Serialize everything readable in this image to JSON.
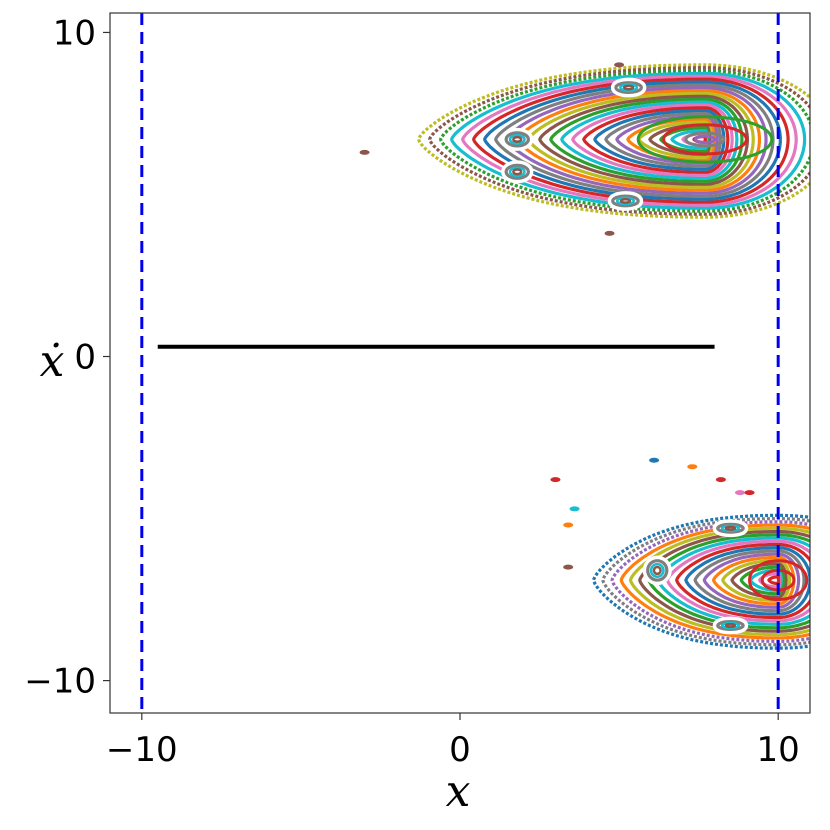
{
  "chart_data": {
    "type": "scatter",
    "title": "",
    "xlabel": "x",
    "ylabel": "ẋ",
    "xlim": [
      -11,
      11
    ],
    "ylim": [
      -11,
      10.6
    ],
    "xticks": [
      {
        "value": -10,
        "label": "−10"
      },
      {
        "value": 0,
        "label": "0"
      },
      {
        "value": 10,
        "label": "10"
      }
    ],
    "yticks": [
      {
        "value": 10,
        "label": "10"
      },
      {
        "value": 0,
        "label": "0"
      },
      {
        "value": -10,
        "label": "−10"
      }
    ],
    "grid": false,
    "walls": {
      "x": [
        -10,
        10
      ],
      "color": "#0000ee",
      "style": "dashed"
    },
    "reference_line": {
      "y": 0.3,
      "x_start": -9.5,
      "x_end": 8,
      "color": "#000000"
    },
    "palette": [
      "#1f77b4",
      "#ff7f0e",
      "#2ca02c",
      "#d62728",
      "#9467bd",
      "#8c564b",
      "#e377c2",
      "#7f7f7f",
      "#bcbd22",
      "#17becf"
    ],
    "upper_island": {
      "center": [
        7.7,
        6.7
      ],
      "tip_x": -1.3,
      "top_y": 9.0,
      "bottom_y": 4.3,
      "levels": 26
    },
    "lower_island": {
      "center": [
        10.0,
        -6.9
      ],
      "tip_x": 4.2,
      "top_y": -4.9,
      "bottom_y": -9.0,
      "levels": 20
    },
    "secondary_islands": [
      {
        "x": 1.8,
        "y": 6.7,
        "r": [
          0.35,
          0.2
        ]
      },
      {
        "x": 1.8,
        "y": 5.7,
        "r": [
          0.35,
          0.2
        ]
      },
      {
        "x": 5.3,
        "y": 8.3,
        "r": [
          0.4,
          0.15
        ]
      },
      {
        "x": 5.2,
        "y": 4.8,
        "r": [
          0.4,
          0.15
        ]
      },
      {
        "x": 6.2,
        "y": -6.6,
        "r": [
          0.3,
          0.3
        ]
      },
      {
        "x": 8.5,
        "y": -5.3,
        "r": [
          0.4,
          0.12
        ]
      },
      {
        "x": 8.5,
        "y": -8.3,
        "r": [
          0.4,
          0.12
        ]
      }
    ],
    "satellite_points": [
      {
        "x": -3.0,
        "y": 6.3,
        "color": "#8c564b"
      },
      {
        "x": 5.0,
        "y": 9.0,
        "color": "#8c564b"
      },
      {
        "x": 4.7,
        "y": 3.8,
        "color": "#8c564b"
      },
      {
        "x": 3.4,
        "y": -6.5,
        "color": "#8c564b"
      },
      {
        "x": 3.0,
        "y": -3.8,
        "color": "#d62728"
      },
      {
        "x": 3.6,
        "y": -4.7,
        "color": "#17becf"
      },
      {
        "x": 6.1,
        "y": -3.2,
        "color": "#1f77b4"
      },
      {
        "x": 7.3,
        "y": -3.4,
        "color": "#ff7f0e"
      },
      {
        "x": 8.2,
        "y": -3.8,
        "color": "#d62728"
      },
      {
        "x": 8.8,
        "y": -4.2,
        "color": "#e377c2"
      },
      {
        "x": 9.1,
        "y": -4.2,
        "color": "#d62728"
      },
      {
        "x": 3.4,
        "y": -5.2,
        "color": "#ff7f0e"
      }
    ]
  }
}
